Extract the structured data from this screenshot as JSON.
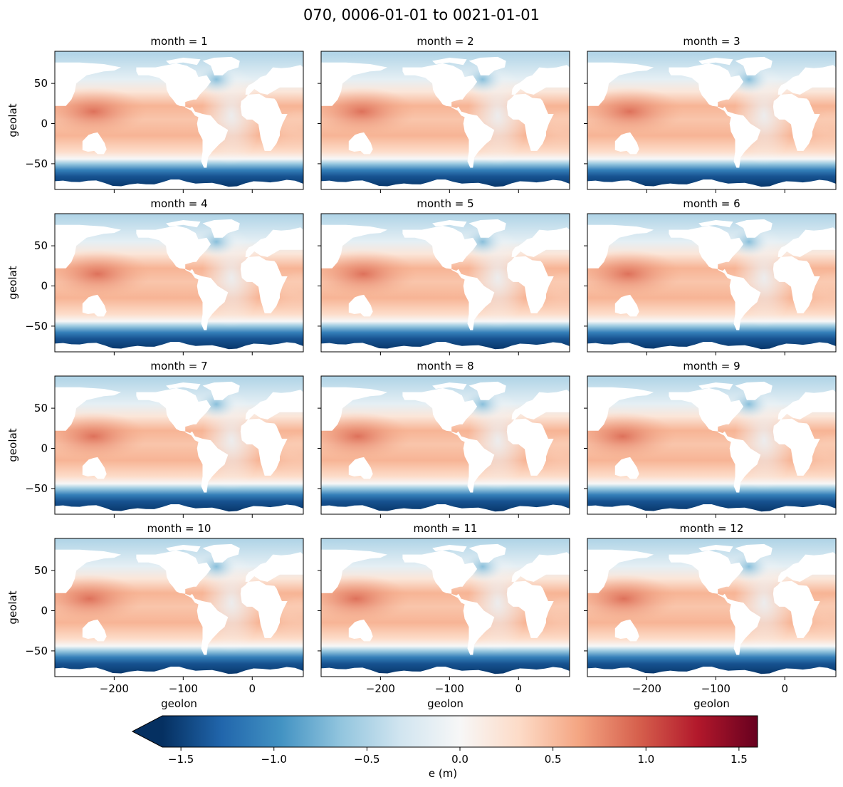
{
  "chart_data": {
    "type": "heatmap",
    "title": "070, 0006-01-01 to 0021-01-01",
    "facet_titles": [
      "month = 1",
      "month = 2",
      "month = 3",
      "month = 4",
      "month = 5",
      "month = 6",
      "month = 7",
      "month = 8",
      "month = 9",
      "month = 10",
      "month = 11",
      "month = 12"
    ],
    "xlabel": "geolon",
    "ylabel": "geolat",
    "xlim": [
      -286,
      74
    ],
    "ylim": [
      -82,
      90
    ],
    "x_ticks": [
      -200,
      -100,
      0
    ],
    "x_tick_labels": [
      "−200",
      "−100",
      "0"
    ],
    "y_ticks": [
      -50,
      0,
      50
    ],
    "y_tick_labels": [
      "−50",
      "0",
      "50"
    ],
    "colorbar": {
      "label": "e (m)",
      "vmin": -1.6,
      "vmax": 1.6,
      "extend": "min",
      "cmap": "RdBu_r",
      "ticks": [
        -1.5,
        -1.0,
        -0.5,
        0.0,
        0.5,
        1.0,
        1.5
      ],
      "tick_labels": [
        "−1.5",
        "−1.0",
        "−0.5",
        "0.0",
        "0.5",
        "1.0",
        "1.5"
      ],
      "colors": [
        "#053061",
        "#2166ac",
        "#4393c3",
        "#92c5de",
        "#d1e5f0",
        "#f7f7f7",
        "#fddbc7",
        "#f4a582",
        "#d6604d",
        "#b2182b",
        "#67001f"
      ]
    },
    "approx_field": {
      "western_pacific_warm_pool": 0.9,
      "tropical_pacific": 0.55,
      "indian_ocean": 0.45,
      "atlantic": -0.1,
      "north_atlantic_labrador": -0.7,
      "arctic": -0.5,
      "southern_ocean": -1.4
    }
  }
}
